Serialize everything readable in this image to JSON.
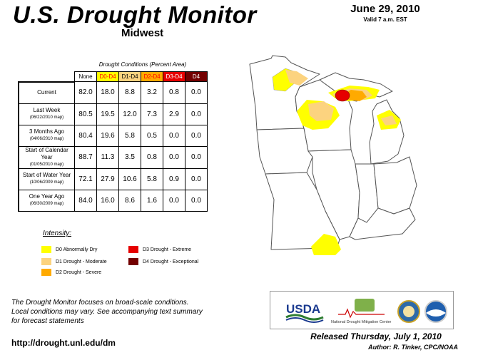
{
  "title": "U.S. Drought Monitor",
  "region": "Midwest",
  "date": "June 29, 2010",
  "valid": "Valid 7 a.m. EST",
  "conditions_title": "Drought Conditions (Percent Area)",
  "columns": [
    "None",
    "D0-D4",
    "D1-D4",
    "D2-D4",
    "D3-D4",
    "D4"
  ],
  "column_colors": [
    "#ffffff",
    "#ffff00",
    "#fcd37f",
    "#ffaa00",
    "#e60000",
    "#730000"
  ],
  "column_text_colors": [
    "#000000",
    "#ff0000",
    "#000000",
    "#ff0000",
    "#ffffff",
    "#ffffff"
  ],
  "rows": [
    {
      "label": "Current",
      "sub": "",
      "values": [
        "82.0",
        "18.0",
        "8.8",
        "3.2",
        "0.8",
        "0.0"
      ]
    },
    {
      "label": "Last Week",
      "sub": "(06/22/2010 map)",
      "values": [
        "80.5",
        "19.5",
        "12.0",
        "7.3",
        "2.9",
        "0.0"
      ]
    },
    {
      "label": "3 Months Ago",
      "sub": "(04/06/2010 map)",
      "values": [
        "80.4",
        "19.6",
        "5.8",
        "0.5",
        "0.0",
        "0.0"
      ]
    },
    {
      "label": "Start of Calendar Year",
      "sub": "(01/05/2010 map)",
      "values": [
        "88.7",
        "11.3",
        "3.5",
        "0.8",
        "0.0",
        "0.0"
      ]
    },
    {
      "label": "Start of Water Year",
      "sub": "(10/06/2009 map)",
      "values": [
        "72.1",
        "27.9",
        "10.6",
        "5.8",
        "0.9",
        "0.0"
      ]
    },
    {
      "label": "One Year Ago",
      "sub": "(06/30/2009 map)",
      "values": [
        "84.0",
        "16.0",
        "8.6",
        "1.6",
        "0.0",
        "0.0"
      ]
    }
  ],
  "intensity_label": "Intensity:",
  "legend": [
    {
      "label": "D0 Abnormally Dry",
      "color": "#ffff00"
    },
    {
      "label": "D1 Drought - Moderate",
      "color": "#fcd37f"
    },
    {
      "label": "D2 Drought - Severe",
      "color": "#ffaa00"
    },
    {
      "label": "D3 Drought - Extreme",
      "color": "#e60000"
    },
    {
      "label": "D4 Drought - Exceptional",
      "color": "#730000"
    }
  ],
  "notes": [
    "The Drought Monitor focuses on broad-scale conditions.",
    "Local conditions may vary. See accompanying text summary",
    "for forecast statements"
  ],
  "url": "http://drought.unl.edu/dm",
  "released": "Released Thursday, July 1, 2010",
  "author": "Author: R. Tinker, CPC/NOAA",
  "logos": {
    "usda": "USDA",
    "ndmc": "National Drought Mitigation Center"
  }
}
